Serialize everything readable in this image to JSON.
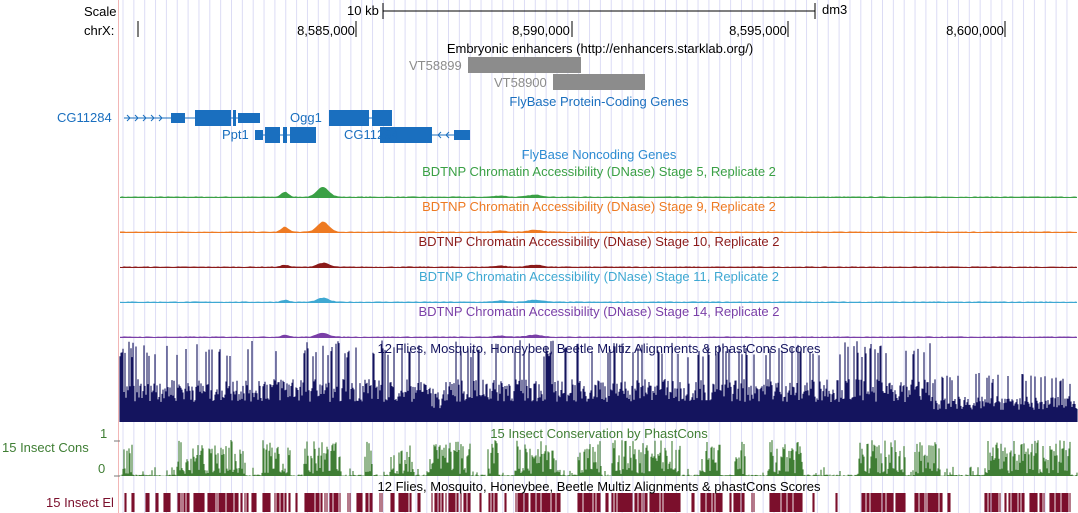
{
  "scale": {
    "label": "Scale",
    "bar_label": "10 kb",
    "assembly": "dm3"
  },
  "ruler": {
    "chrom_label": "chrX:",
    "ticks": [
      "8,585,000",
      "8,590,000",
      "8,595,000",
      "8,600,000"
    ]
  },
  "tracks": {
    "enhancers": {
      "title": "Embryonic enhancers (http://enhancers.starklab.org/)",
      "items": [
        "VT58899",
        "VT58900"
      ],
      "color": "#8c8c8c"
    },
    "flybase_coding": {
      "title": "FlyBase Protein-Coding Genes",
      "genes": [
        "CG11284",
        "Ppt1",
        "Ogg1",
        "CG11294"
      ],
      "color": "#1a6fbf"
    },
    "flybase_noncoding": {
      "title": "FlyBase Noncoding Genes",
      "color": "#2c8bd2"
    },
    "dnase": [
      {
        "title": "BDTNP Chromatin Accessibility (DNase) Stage 5, Replicate 2",
        "color": "#3aa045"
      },
      {
        "title": "BDTNP Chromatin Accessibility (DNase) Stage 9, Replicate 2",
        "color": "#ee7a22"
      },
      {
        "title": "BDTNP Chromatin Accessibility (DNase) Stage 10, Replicate 2",
        "color": "#8b1a1a"
      },
      {
        "title": "BDTNP Chromatin Accessibility (DNase) Stage 11, Replicate 2",
        "color": "#3ea8d2"
      },
      {
        "title": "BDTNP Chromatin Accessibility (DNase) Stage 14, Replicate 2",
        "color": "#7a3fa7"
      }
    ],
    "multiz": {
      "title": "12 Flies, Mosquito, Honeybee, Beetle Multiz Alignments & phastCons Scores",
      "color": "#14145e"
    },
    "cons": {
      "title": "15 Insect Conservation by PhastCons",
      "side_label": "15 Insect Cons",
      "y_max": "1",
      "y_min": "0",
      "color": "#3f7e34"
    },
    "elements": {
      "title": "12 Flies, Mosquito, Honeybee, Beetle Multiz Alignments & phastCons Scores",
      "side_label": "15 Insect El",
      "color": "#7b0f2c"
    }
  },
  "colors": {
    "guide": "#dcdcf5",
    "label_text": "#1a6fbf"
  }
}
